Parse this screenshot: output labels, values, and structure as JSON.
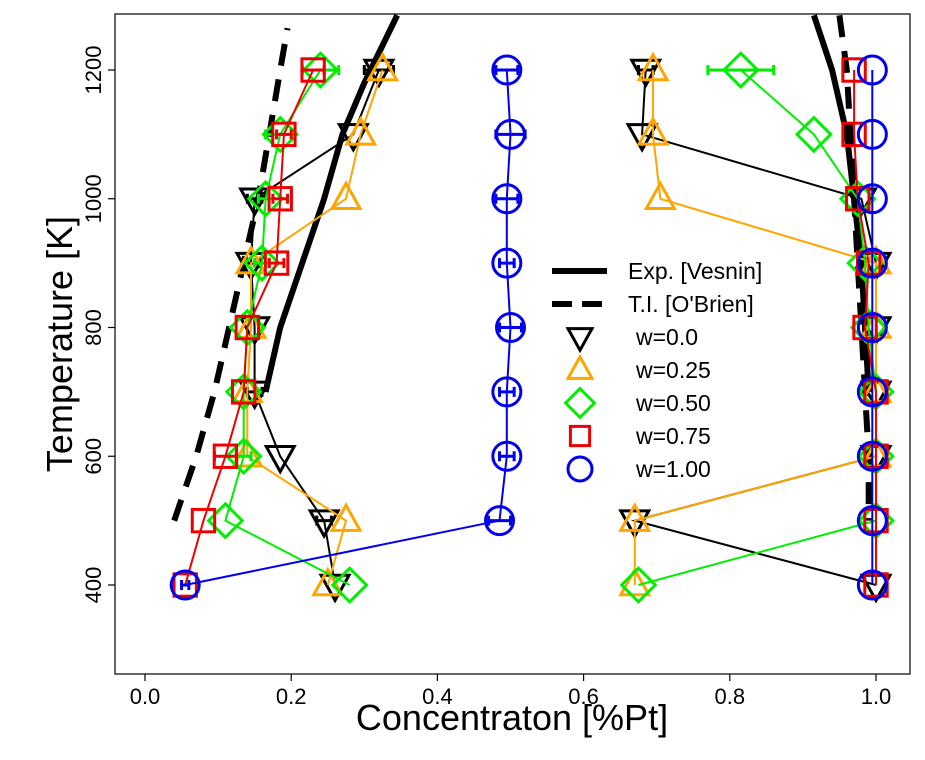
{
  "chart_data": {
    "type": "scatter",
    "xlabel": "Concentraton [%Pt]",
    "ylabel": "Temperature [K]",
    "xlim": [
      -0.04,
      1.05
    ],
    "ylim": [
      260,
      1285
    ],
    "xticks": [
      "0.0",
      "0.2",
      "0.4",
      "0.6",
      "0.8",
      "1.0"
    ],
    "yticks": [
      "400",
      "600",
      "800",
      "1000",
      "1200"
    ],
    "legend": [
      {
        "label": "Exp. [Vesnin]",
        "kind": "solid-line",
        "color": "#000000"
      },
      {
        "label": "T.I. [O'Brien]",
        "kind": "dashed-line",
        "color": "#000000"
      },
      {
        "label": "w=0.0",
        "kind": "triangle-down",
        "color": "#000000"
      },
      {
        "label": "w=0.25",
        "kind": "triangle-up",
        "color": "#FFA500"
      },
      {
        "label": "w=0.50",
        "kind": "diamond",
        "color": "#00EE00"
      },
      {
        "label": "w=0.75",
        "kind": "square",
        "color": "#EE0000"
      },
      {
        "label": "w=1.00",
        "kind": "circle",
        "color": "#0000EE"
      }
    ],
    "reference_curves": [
      {
        "name": "Exp. [Vesnin]",
        "style": "solid",
        "segments": [
          [
            [
              0.165,
              700
            ],
            [
              0.185,
              800
            ],
            [
              0.215,
              900
            ],
            [
              0.245,
              1000
            ],
            [
              0.27,
              1100
            ],
            [
              0.3,
              1180
            ],
            [
              0.345,
              1285
            ]
          ],
          [
            [
              0.915,
              1285
            ],
            [
              0.94,
              1200
            ],
            [
              0.96,
              1100
            ],
            [
              0.97,
              1000
            ],
            [
              0.98,
              900
            ],
            [
              0.985,
              800
            ],
            [
              0.99,
              700
            ]
          ]
        ]
      },
      {
        "name": "T.I. [O'Brien]",
        "style": "dashed",
        "segments": [
          [
            [
              0.04,
              500
            ],
            [
              0.07,
              600
            ],
            [
              0.095,
              700
            ],
            [
              0.115,
              800
            ],
            [
              0.135,
              900
            ],
            [
              0.155,
              1000
            ],
            [
              0.17,
              1100
            ],
            [
              0.185,
              1200
            ],
            [
              0.195,
              1265
            ]
          ],
          [
            [
              0.95,
              1285
            ],
            [
              0.96,
              1200
            ],
            [
              0.965,
              1100
            ],
            [
              0.97,
              1000
            ],
            [
              0.975,
              900
            ],
            [
              0.98,
              800
            ],
            [
              0.985,
              700
            ],
            [
              0.99,
              600
            ],
            [
              0.99,
              500
            ]
          ]
        ]
      }
    ],
    "series": [
      {
        "name": "w=0.0",
        "marker": "triangle-down",
        "color": "#000000",
        "left": [
          [
            0.26,
            400,
            0.0
          ],
          [
            0.245,
            500,
            0.01
          ],
          [
            0.185,
            600,
            0.0
          ],
          [
            0.15,
            700,
            0.01
          ],
          [
            0.15,
            800,
            0.0
          ],
          [
            0.145,
            900,
            0.01
          ],
          [
            0.15,
            1000,
            0.01
          ],
          [
            0.285,
            1100,
            0.0
          ],
          [
            0.32,
            1200,
            0.02
          ]
        ],
        "right": [
          [
            1.0,
            400,
            0.0
          ],
          [
            0.67,
            500,
            0.0
          ],
          [
            1.0,
            600,
            0.0
          ],
          [
            1.0,
            700,
            0.0
          ],
          [
            1.0,
            800,
            0.0
          ],
          [
            1.0,
            900,
            0.0
          ],
          [
            0.98,
            1000,
            0.0
          ],
          [
            0.68,
            1100,
            0.0
          ],
          [
            0.685,
            1200,
            0.01
          ]
        ]
      },
      {
        "name": "w=0.25",
        "marker": "triangle-up",
        "color": "#FFA500",
        "left": [
          [
            0.25,
            400,
            0.0
          ],
          [
            0.275,
            500,
            0.0
          ],
          [
            0.14,
            600,
            0.0
          ],
          [
            0.14,
            700,
            0.0
          ],
          [
            0.145,
            800,
            0.0
          ],
          [
            0.145,
            900,
            0.0
          ],
          [
            0.275,
            1000,
            0.0
          ],
          [
            0.295,
            1100,
            0.0
          ],
          [
            0.325,
            1200,
            0.0
          ]
        ],
        "right": [
          [
            0.67,
            400,
            0.0
          ],
          [
            0.67,
            500,
            0.0
          ],
          [
            1.0,
            600,
            0.0
          ],
          [
            1.0,
            700,
            0.0
          ],
          [
            1.0,
            800,
            0.0
          ],
          [
            1.0,
            900,
            0.0
          ],
          [
            0.705,
            1000,
            0.0
          ],
          [
            0.695,
            1100,
            0.0
          ],
          [
            0.695,
            1200,
            0.0
          ]
        ]
      },
      {
        "name": "w=0.50",
        "marker": "diamond",
        "color": "#00EE00",
        "left": [
          [
            0.28,
            400,
            0.0
          ],
          [
            0.11,
            500,
            0.0
          ],
          [
            0.135,
            600,
            0.01
          ],
          [
            0.135,
            700,
            0.0
          ],
          [
            0.14,
            800,
            0.0
          ],
          [
            0.16,
            900,
            0.01
          ],
          [
            0.165,
            1000,
            0.01
          ],
          [
            0.185,
            1100,
            0.02
          ],
          [
            0.24,
            1200,
            0.025
          ]
        ],
        "right": [
          [
            0.675,
            400,
            0.0
          ],
          [
            1.0,
            500,
            0.0
          ],
          [
            1.0,
            600,
            0.0
          ],
          [
            1.0,
            700,
            0.0
          ],
          [
            0.99,
            800,
            0.0
          ],
          [
            0.985,
            900,
            0.0
          ],
          [
            0.975,
            1000,
            0.0
          ],
          [
            0.915,
            1100,
            0.0
          ],
          [
            0.815,
            1200,
            0.045
          ]
        ]
      },
      {
        "name": "w=0.75",
        "marker": "square",
        "color": "#EE0000",
        "left": [
          [
            0.055,
            400,
            0.0
          ],
          [
            0.08,
            500,
            0.0
          ],
          [
            0.11,
            600,
            0.015
          ],
          [
            0.135,
            700,
            0.0
          ],
          [
            0.14,
            800,
            0.0
          ],
          [
            0.18,
            900,
            0.01
          ],
          [
            0.185,
            1000,
            0.01
          ],
          [
            0.19,
            1100,
            0.01
          ],
          [
            0.23,
            1200,
            0.015
          ]
        ],
        "right": [
          [
            1.0,
            400,
            0.0
          ],
          [
            1.0,
            500,
            0.0
          ],
          [
            1.0,
            600,
            0.0
          ],
          [
            1.0,
            700,
            0.0
          ],
          [
            0.985,
            800,
            0.0
          ],
          [
            0.99,
            900,
            0.0
          ],
          [
            0.975,
            1000,
            0.0
          ],
          [
            0.97,
            1100,
            0.0
          ],
          [
            0.97,
            1200,
            0.0
          ]
        ]
      },
      {
        "name": "w=1.00",
        "marker": "circle",
        "color": "#0000EE",
        "left": [
          [
            0.055,
            400,
            0.005
          ],
          [
            0.485,
            500,
            0.015
          ],
          [
            0.495,
            600,
            0.01
          ],
          [
            0.495,
            700,
            0.01
          ],
          [
            0.5,
            800,
            0.015
          ],
          [
            0.495,
            900,
            0.01
          ],
          [
            0.495,
            1000,
            0.015
          ],
          [
            0.5,
            1100,
            0.02
          ],
          [
            0.495,
            1200,
            0.015
          ]
        ],
        "right": [
          [
            0.995,
            400,
            0.0
          ],
          [
            0.995,
            500,
            0.0
          ],
          [
            0.995,
            600,
            0.0
          ],
          [
            0.995,
            700,
            0.0
          ],
          [
            0.995,
            800,
            0.0
          ],
          [
            0.995,
            900,
            0.0
          ],
          [
            0.995,
            1000,
            0.0
          ],
          [
            0.995,
            1100,
            0.0
          ],
          [
            0.995,
            1200,
            0.0
          ]
        ]
      }
    ]
  }
}
